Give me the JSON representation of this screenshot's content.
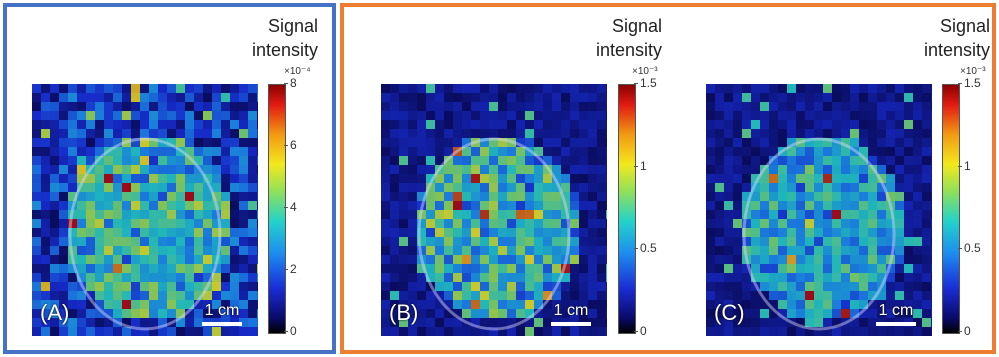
{
  "panels": [
    {
      "id": "A",
      "label": "(A)",
      "scale_label": "1 cm",
      "colorbar_title": [
        "Signal",
        "intensity"
      ],
      "exponent": "×10⁻⁴",
      "ticks": [
        "8",
        "6",
        "4",
        "2",
        "0"
      ],
      "tick_values": [
        8,
        6,
        4,
        2,
        0
      ],
      "max": 8
    },
    {
      "id": "B",
      "label": "(B)",
      "scale_label": "1 cm",
      "colorbar_title": [
        "Signal",
        "intensity"
      ],
      "exponent": "×10⁻³",
      "ticks": [
        "1.5",
        "1",
        "0.5",
        "0"
      ],
      "tick_values": [
        1.5,
        1,
        0.5,
        0
      ],
      "max": 1.5
    },
    {
      "id": "C",
      "label": "(C)",
      "scale_label": "1 cm",
      "colorbar_title": [
        "Signal",
        "intensity"
      ],
      "exponent": "×10⁻³",
      "ticks": [
        "1.5",
        "1",
        "0.5",
        "0"
      ],
      "tick_values": [
        1.5,
        1,
        0.5,
        0
      ],
      "max": 1.5
    }
  ],
  "frame_colors": {
    "left_group": "#4472C4",
    "right_group": "#ED7D31"
  },
  "colormap": "jet"
}
